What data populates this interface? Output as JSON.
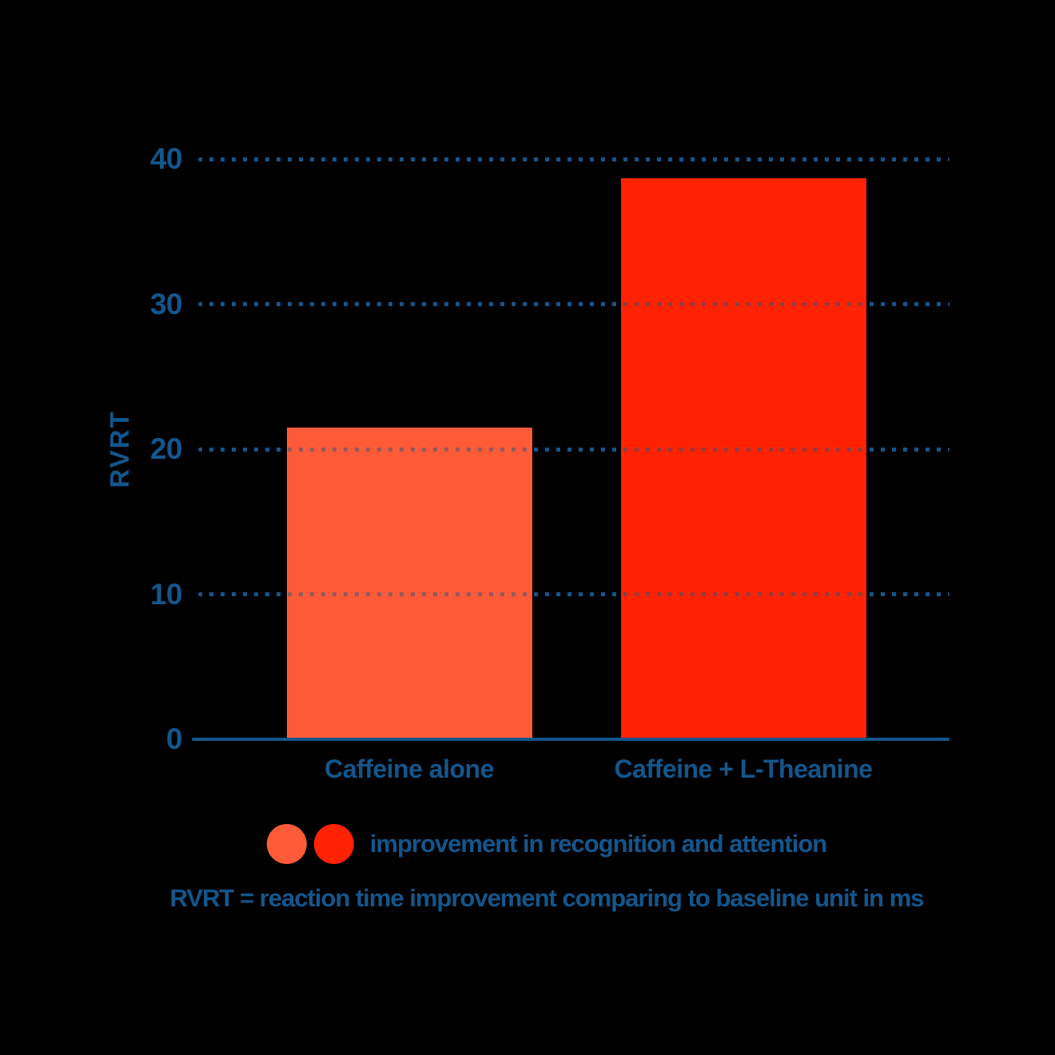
{
  "canvas": {
    "background": "#000000"
  },
  "colors": {
    "axis_blue": "#13568C",
    "bar_orange": "#FF5B38",
    "bar_red": "#FF2303"
  },
  "chart_data": {
    "type": "bar",
    "title": "",
    "categories": [
      "Caffeine alone",
      "Caffeine + L-Theanine"
    ],
    "values": [
      21.5,
      38.7
    ],
    "bar_colors": [
      "#FF5B38",
      "#FF2303"
    ],
    "xlabel": "",
    "ylabel": "RVRT",
    "ylim": [
      0,
      40
    ],
    "yticks": [
      0,
      10,
      20,
      30,
      40
    ],
    "grid": "horizontal dotted lines at 10, 20, 30, 40; solid axis line at 0",
    "legend": {
      "position": "below-chart",
      "swatch_colors": [
        "#FF5B38",
        "#FF2303"
      ],
      "label": "improvement in recognition and attention"
    },
    "footnote": "RVRT = reaction time improvement comparing to baseline unit in ms"
  }
}
